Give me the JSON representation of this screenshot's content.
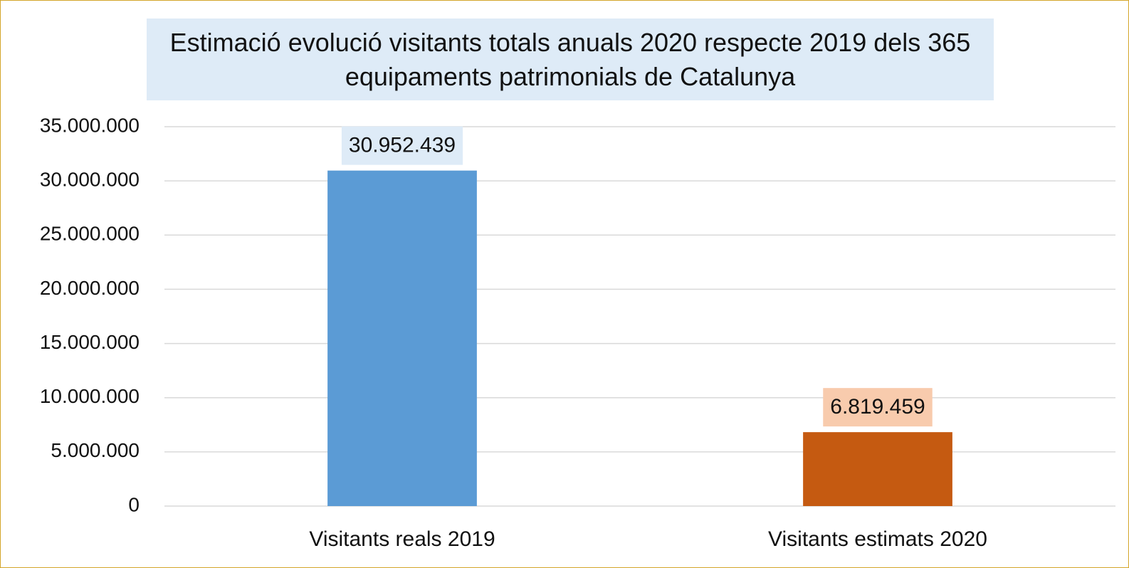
{
  "chart_data": {
    "type": "bar",
    "title": "Estimació evolució visitants totals anuals 2020 respecte 2019 dels 365 equipaments patrimonials de Catalunya",
    "categories": [
      "Visitants reals 2019",
      "Visitants estimats 2020"
    ],
    "values": [
      30952439,
      6819459
    ],
    "value_labels": [
      "30.952.439",
      "6.819.459"
    ],
    "colors": [
      "#5b9bd5",
      "#c55a11"
    ],
    "label_background_colors": [
      "#deebf7",
      "#f8cbad"
    ],
    "ylim": [
      0,
      35000000
    ],
    "yticks": [
      0,
      {
        "value": 5000000,
        "label": "5.000.000"
      },
      {
        "value": 10000000,
        "label": "10.000.000"
      },
      {
        "value": 15000000,
        "label": "15.000.000"
      },
      {
        "value": 20000000,
        "label": "20.000.000"
      },
      {
        "value": 25000000,
        "label": "25.000.000"
      },
      {
        "value": 30000000,
        "label": "30.000.000"
      },
      {
        "value": 35000000,
        "label": "35.000.000"
      }
    ],
    "grid": true
  }
}
